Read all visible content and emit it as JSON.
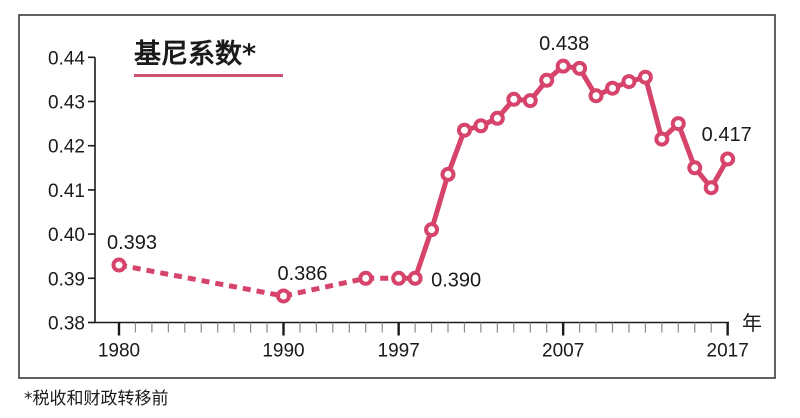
{
  "chart_data": {
    "type": "line",
    "title": "基尼系数*",
    "xlabel": "年",
    "ylabel": "",
    "footnote": "*税收和财政转移前",
    "ylim": [
      0.38,
      0.44
    ],
    "yticks": [
      "0.38",
      "0.39",
      "0.40",
      "0.41",
      "0.42",
      "0.43",
      "0.44"
    ],
    "xlim": [
      1978.5,
      2017
    ],
    "xticks_major": [
      1980,
      1990,
      1997,
      2007,
      2017
    ],
    "xtick_labels": [
      "1980",
      "1990",
      "1997",
      "2007",
      "2017"
    ],
    "grid": false,
    "legend": null,
    "series": [
      {
        "name": "基尼系数",
        "color": "#d6436b",
        "segments": [
          {
            "style": "dashed",
            "x": [
              1980,
              1990,
              1995,
              1997
            ]
          },
          {
            "style": "solid",
            "x": [
              1997,
              1998,
              1999,
              2000,
              2001,
              2002,
              2003,
              2004,
              2005,
              2006,
              2007,
              2008,
              2009,
              2010,
              2011,
              2012,
              2013,
              2014,
              2015,
              2016,
              2017
            ]
          }
        ],
        "points": [
          {
            "x": 1980,
            "y": 0.393
          },
          {
            "x": 1990,
            "y": 0.386
          },
          {
            "x": 1995,
            "y": 0.39
          },
          {
            "x": 1997,
            "y": 0.39
          },
          {
            "x": 1998,
            "y": 0.39
          },
          {
            "x": 1999,
            "y": 0.401
          },
          {
            "x": 2000,
            "y": 0.4135
          },
          {
            "x": 2001,
            "y": 0.4235
          },
          {
            "x": 2002,
            "y": 0.4245
          },
          {
            "x": 2003,
            "y": 0.4262
          },
          {
            "x": 2004,
            "y": 0.4305
          },
          {
            "x": 2005,
            "y": 0.4302
          },
          {
            "x": 2006,
            "y": 0.4348
          },
          {
            "x": 2007,
            "y": 0.438
          },
          {
            "x": 2008,
            "y": 0.4375
          },
          {
            "x": 2009,
            "y": 0.4313
          },
          {
            "x": 2010,
            "y": 0.433
          },
          {
            "x": 2011,
            "y": 0.4345
          },
          {
            "x": 2012,
            "y": 0.4355
          },
          {
            "x": 2013,
            "y": 0.4215
          },
          {
            "x": 2014,
            "y": 0.425
          },
          {
            "x": 2015,
            "y": 0.415
          },
          {
            "x": 2016,
            "y": 0.4105
          },
          {
            "x": 2017,
            "y": 0.417
          }
        ],
        "annotations": [
          {
            "x": 1980,
            "y": 0.393,
            "label": "0.393",
            "dx": -12,
            "dy": -16
          },
          {
            "x": 1990,
            "y": 0.386,
            "label": "0.386",
            "dx": -6,
            "dy": -16
          },
          {
            "x": 1998,
            "y": 0.39,
            "label": "0.390",
            "dx": 16,
            "dy": 8
          },
          {
            "x": 2007,
            "y": 0.438,
            "label": "0.438",
            "dx": -24,
            "dy": -16
          },
          {
            "x": 2017,
            "y": 0.417,
            "label": "0.417",
            "dx": -26,
            "dy": -18
          }
        ]
      }
    ]
  }
}
